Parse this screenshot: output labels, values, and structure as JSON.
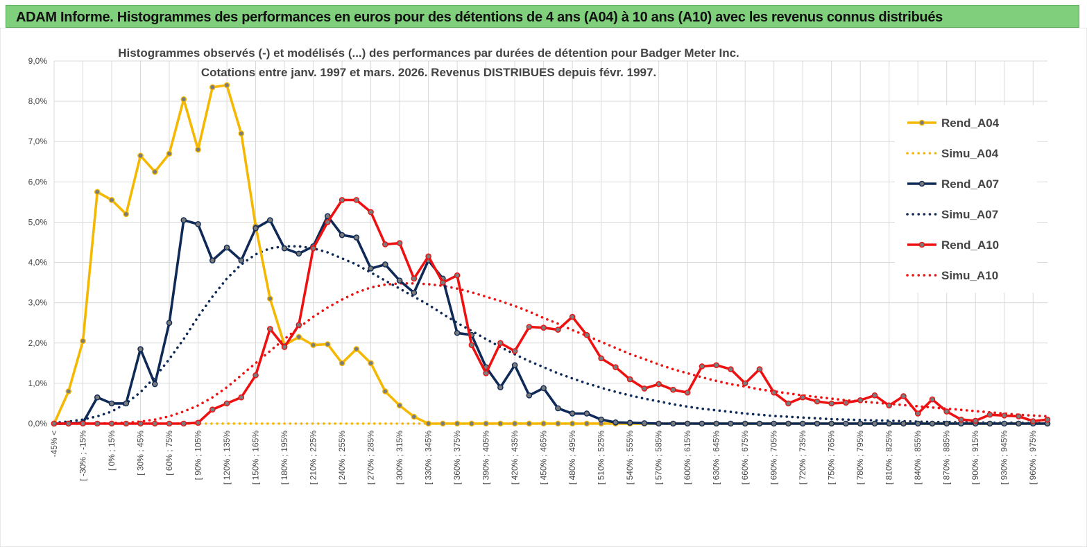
{
  "header": {
    "title": "ADAM Informe. Histogrammes des performances en euros pour des détentions de 4 ans (A04) à 10 ans (A10) avec les revenus connus distribués"
  },
  "colors": {
    "A04": "#f5b800",
    "A07": "#0f2a57",
    "A10": "#ee1111",
    "grid": "#d9d9d9",
    "banner": "#7fcf7c"
  },
  "chart_data": {
    "type": "line",
    "title_line1": "Histogrammes observés (-) et modélisés (...) des performances par durées de détention pour Badger Meter Inc.",
    "title_line2": "Cotations entre janv. 1997 et mars. 2026. Revenus DISTRIBUES depuis févr. 1997.",
    "ylim": [
      0,
      9
    ],
    "y_ticks": [
      "0,0%",
      "1,0%",
      "2,0%",
      "3,0%",
      "4,0%",
      "5,0%",
      "6,0%",
      "7,0%",
      "8,0%",
      "9,0%"
    ],
    "x_labels": [
      "-45% <",
      "[ -30% ; -15%",
      "[ 0% ; 15%",
      "[ 30% ; 45%",
      "[ 60% ; 75%",
      "[ 90% ; 105%",
      "[ 120% ; 135%",
      "[ 150% ; 165%",
      "[ 180% ; 195%",
      "[ 210% ; 225%",
      "[ 240% ; 255%",
      "[ 270% ; 285%",
      "[ 300% ; 315%",
      "[ 330% ; 345%",
      "[ 360% ; 375%",
      "[ 390% ; 405%",
      "[ 420% ; 435%",
      "[ 450% ; 465%",
      "[ 480% ; 495%",
      "[ 510% ; 525%",
      "[ 540% ; 555%",
      "[ 570% ; 585%",
      "[ 600% ; 615%",
      "[ 630% ; 645%",
      "[ 660% ; 675%",
      "[ 690% ; 705%",
      "[ 720% ; 735%",
      "[ 750% ; 765%",
      "[ 780% ; 795%",
      "[ 810% ; 825%",
      "[ 840% ; 855%",
      "[ 870% ; 885%",
      "[ 900% ; 915%",
      "[ 930% ; 945%",
      "[ 960% ; 975%"
    ],
    "n_points": 70,
    "series": [
      {
        "name": "Rend_A04",
        "style": "solid",
        "color": "#f5b800",
        "markers": true,
        "values": [
          0.0,
          0.8,
          2.05,
          5.75,
          5.55,
          5.2,
          6.65,
          6.25,
          6.7,
          8.05,
          6.8,
          8.35,
          8.4,
          7.2,
          4.9,
          3.1,
          1.95,
          2.15,
          1.95,
          1.97,
          1.5,
          1.85,
          1.5,
          0.8,
          0.45,
          0.17,
          0,
          0,
          0,
          0,
          0,
          0,
          0,
          0,
          0,
          0,
          0,
          0,
          0,
          0,
          0,
          0,
          0,
          0,
          0,
          0,
          0,
          0,
          0,
          0,
          0,
          0,
          0,
          0,
          0,
          0,
          0,
          0,
          0,
          0,
          0,
          0,
          0,
          0,
          0,
          0,
          0,
          0,
          0,
          0
        ]
      },
      {
        "name": "Simu_A04",
        "style": "dotted",
        "color": "#f5b800",
        "markers": false,
        "values": [
          0,
          0,
          0,
          0,
          0,
          0,
          0,
          0,
          0,
          0,
          0,
          0,
          0,
          0,
          0,
          0,
          0,
          0,
          0,
          0,
          0,
          0,
          0,
          0,
          0,
          0,
          0,
          0,
          0,
          0,
          0,
          0,
          0,
          0,
          0,
          0,
          0,
          0,
          0,
          0,
          0,
          0,
          0,
          0,
          0,
          0,
          0,
          0,
          0,
          0,
          0,
          0,
          0,
          0,
          0,
          0,
          0,
          0,
          0,
          0,
          0,
          0,
          0,
          0,
          0,
          0,
          0,
          0,
          0,
          0
        ]
      },
      {
        "name": "Rend_A07",
        "style": "solid",
        "color": "#0f2a57",
        "markers": true,
        "values": [
          0,
          0,
          0.02,
          0.65,
          0.5,
          0.5,
          1.85,
          0.98,
          2.5,
          5.05,
          4.95,
          4.05,
          4.37,
          4.05,
          4.85,
          5.05,
          4.35,
          4.22,
          4.4,
          5.15,
          4.68,
          4.62,
          3.85,
          3.95,
          3.55,
          3.25,
          4.05,
          3.6,
          2.25,
          2.2,
          1.4,
          0.9,
          1.45,
          0.7,
          0.88,
          0.38,
          0.25,
          0.25,
          0.1,
          0.03,
          0.02,
          0.01,
          0,
          0,
          0,
          0,
          0,
          0,
          0,
          0,
          0,
          0,
          0,
          0,
          0,
          0,
          0,
          0,
          0,
          0,
          0,
          0,
          0,
          0,
          0,
          0,
          0,
          0,
          0,
          0
        ]
      },
      {
        "name": "Simu_A07",
        "style": "dotted",
        "color": "#0f2a57",
        "markers": false,
        "values": [
          0.02,
          0.05,
          0.1,
          0.18,
          0.3,
          0.5,
          0.78,
          1.15,
          1.6,
          2.1,
          2.65,
          3.15,
          3.6,
          3.95,
          4.2,
          4.35,
          4.4,
          4.4,
          4.35,
          4.25,
          4.1,
          3.95,
          3.75,
          3.55,
          3.35,
          3.15,
          2.95,
          2.72,
          2.5,
          2.3,
          2.1,
          1.9,
          1.72,
          1.55,
          1.4,
          1.25,
          1.12,
          1.0,
          0.89,
          0.79,
          0.7,
          0.62,
          0.55,
          0.48,
          0.42,
          0.37,
          0.33,
          0.29,
          0.25,
          0.22,
          0.19,
          0.17,
          0.15,
          0.13,
          0.11,
          0.1,
          0.09,
          0.08,
          0.07,
          0.06,
          0.05,
          0.04,
          0.04,
          0.03,
          0.03,
          0.02,
          0.02,
          0.02,
          0.01,
          0.01
        ]
      },
      {
        "name": "Rend_A10",
        "style": "solid",
        "color": "#ee1111",
        "markers": true,
        "values": [
          0,
          0,
          0,
          0,
          0,
          0,
          0,
          0,
          0,
          0,
          0.02,
          0.35,
          0.5,
          0.65,
          1.2,
          2.35,
          1.9,
          2.45,
          4.35,
          5.0,
          5.55,
          5.55,
          5.25,
          4.45,
          4.48,
          3.6,
          4.15,
          3.5,
          3.68,
          1.95,
          1.25,
          2.0,
          1.8,
          2.4,
          2.38,
          2.33,
          2.65,
          2.2,
          1.62,
          1.4,
          1.1,
          0.87,
          0.98,
          0.84,
          0.77,
          1.42,
          1.45,
          1.35,
          1.0,
          1.35,
          0.77,
          0.5,
          0.65,
          0.55,
          0.5,
          0.52,
          0.58,
          0.7,
          0.45,
          0.68,
          0.25,
          0.6,
          0.3,
          0.1,
          0.07,
          0.22,
          0.2,
          0.18,
          0.06,
          0.1
        ]
      },
      {
        "name": "Simu_A10",
        "style": "dotted",
        "color": "#ee1111",
        "markers": false,
        "values": [
          0,
          0,
          0,
          0,
          0.01,
          0.02,
          0.05,
          0.1,
          0.18,
          0.3,
          0.45,
          0.65,
          0.9,
          1.2,
          1.5,
          1.8,
          2.1,
          2.38,
          2.65,
          2.88,
          3.08,
          3.25,
          3.38,
          3.45,
          3.48,
          3.48,
          3.46,
          3.42,
          3.35,
          3.26,
          3.15,
          3.04,
          2.92,
          2.78,
          2.62,
          2.48,
          2.32,
          2.18,
          2.03,
          1.88,
          1.73,
          1.6,
          1.47,
          1.35,
          1.25,
          1.15,
          1.06,
          0.98,
          0.92,
          0.85,
          0.8,
          0.75,
          0.7,
          0.66,
          0.62,
          0.58,
          0.55,
          0.52,
          0.49,
          0.46,
          0.43,
          0.4,
          0.37,
          0.34,
          0.31,
          0.28,
          0.25,
          0.22,
          0.2,
          0.18
        ]
      }
    ]
  }
}
